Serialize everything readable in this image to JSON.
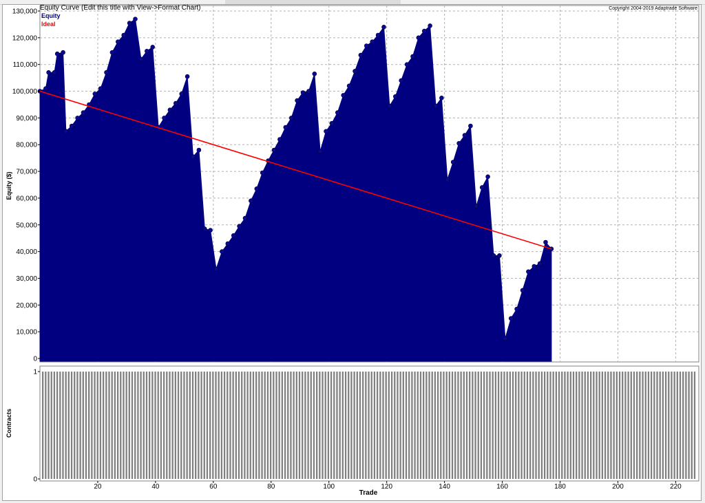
{
  "chart_data": [
    {
      "type": "area",
      "title": "Equity Curve (Edit this title with View->Format Chart)",
      "copyright": "Copyright 2004-2019 Adaptrade Software",
      "ylabel": "Equity ($)",
      "ylim": [
        0,
        130000
      ],
      "yticks": [
        0,
        10000,
        20000,
        30000,
        40000,
        50000,
        60000,
        70000,
        80000,
        90000,
        100000,
        110000,
        120000,
        130000
      ],
      "ytick_labels": [
        "0",
        "10,000",
        "20,000",
        "30,000",
        "40,000",
        "50,000",
        "60,000",
        "70,000",
        "80,000",
        "90,000",
        "100,000",
        "110,000",
        "120,000",
        "130,000"
      ],
      "xlim": [
        0,
        228
      ],
      "legend": [
        {
          "name": "Equity",
          "color": "#000080"
        },
        {
          "name": "Ideal",
          "color": "#ff0000"
        }
      ],
      "grid": true,
      "series": [
        {
          "name": "Equity",
          "color": "#000080",
          "points": [
            [
              0,
              100000
            ],
            [
              2,
              101000
            ],
            [
              3,
              107000
            ],
            [
              5,
              107000
            ],
            [
              6,
              114000
            ],
            [
              8,
              114500
            ],
            [
              9,
              85000
            ],
            [
              11,
              87000
            ],
            [
              13,
              90000
            ],
            [
              15,
              92000
            ],
            [
              17,
              95000
            ],
            [
              19,
              99000
            ],
            [
              21,
              101000
            ],
            [
              23,
              107000
            ],
            [
              25,
              114500
            ],
            [
              27,
              118500
            ],
            [
              29,
              121000
            ],
            [
              31,
              125500
            ],
            [
              33,
              127000
            ],
            [
              35,
              112000
            ],
            [
              37,
              115000
            ],
            [
              39,
              116500
            ],
            [
              41,
              86500
            ],
            [
              43,
              90000
            ],
            [
              45,
              93000
            ],
            [
              47,
              95500
            ],
            [
              49,
              99000
            ],
            [
              51,
              105500
            ],
            [
              53,
              75500
            ],
            [
              55,
              78000
            ],
            [
              57,
              48500
            ],
            [
              59,
              48000
            ],
            [
              61,
              33500
            ],
            [
              63,
              40000
            ],
            [
              65,
              43000
            ],
            [
              67,
              46000
            ],
            [
              69,
              49500
            ],
            [
              71,
              52500
            ],
            [
              73,
              59000
            ],
            [
              75,
              63500
            ],
            [
              77,
              69500
            ],
            [
              79,
              74000
            ],
            [
              81,
              78000
            ],
            [
              83,
              82000
            ],
            [
              85,
              86500
            ],
            [
              87,
              90000
            ],
            [
              89,
              96500
            ],
            [
              91,
              99500
            ],
            [
              93,
              100000
            ],
            [
              95,
              106500
            ],
            [
              97,
              77500
            ],
            [
              99,
              85000
            ],
            [
              101,
              88000
            ],
            [
              103,
              92000
            ],
            [
              105,
              98500
            ],
            [
              107,
              102000
            ],
            [
              109,
              107500
            ],
            [
              111,
              113500
            ],
            [
              113,
              117000
            ],
            [
              115,
              118500
            ],
            [
              117,
              121000
            ],
            [
              119,
              124000
            ],
            [
              121,
              94500
            ],
            [
              123,
              98000
            ],
            [
              125,
              104000
            ],
            [
              127,
              110000
            ],
            [
              129,
              113000
            ],
            [
              131,
              120000
            ],
            [
              133,
              122500
            ],
            [
              135,
              124500
            ],
            [
              137,
              94500
            ],
            [
              139,
              97500
            ],
            [
              141,
              67000
            ],
            [
              143,
              73500
            ],
            [
              145,
              80500
            ],
            [
              147,
              83500
            ],
            [
              149,
              87000
            ],
            [
              151,
              57000
            ],
            [
              153,
              64000
            ],
            [
              155,
              68000
            ],
            [
              157,
              38500
            ],
            [
              159,
              38500
            ],
            [
              161,
              7500
            ],
            [
              163,
              15000
            ],
            [
              165,
              18500
            ],
            [
              167,
              25500
            ],
            [
              169,
              32500
            ],
            [
              171,
              34500
            ],
            [
              173,
              35500
            ],
            [
              175,
              43500
            ],
            [
              177,
              41000
            ]
          ]
        },
        {
          "name": "Ideal",
          "color": "#ff0000",
          "points": [
            [
              0,
              100000
            ],
            [
              177,
              41000
            ]
          ]
        }
      ]
    },
    {
      "type": "bar",
      "ylabel": "Contracts",
      "xlabel": "Trade",
      "ylim": [
        0,
        1
      ],
      "yticks": [
        0,
        1
      ],
      "ytick_labels": [
        "0",
        "1"
      ],
      "xlim": [
        0,
        228
      ],
      "xticks": [
        20,
        40,
        60,
        80,
        100,
        120,
        140,
        160,
        180,
        200,
        220
      ],
      "xtick_labels": [
        "20",
        "40",
        "60",
        "80",
        "100",
        "120",
        "140",
        "160",
        "180",
        "200",
        "220"
      ],
      "trade_count": 227,
      "value": 1,
      "color": "#808080"
    }
  ]
}
